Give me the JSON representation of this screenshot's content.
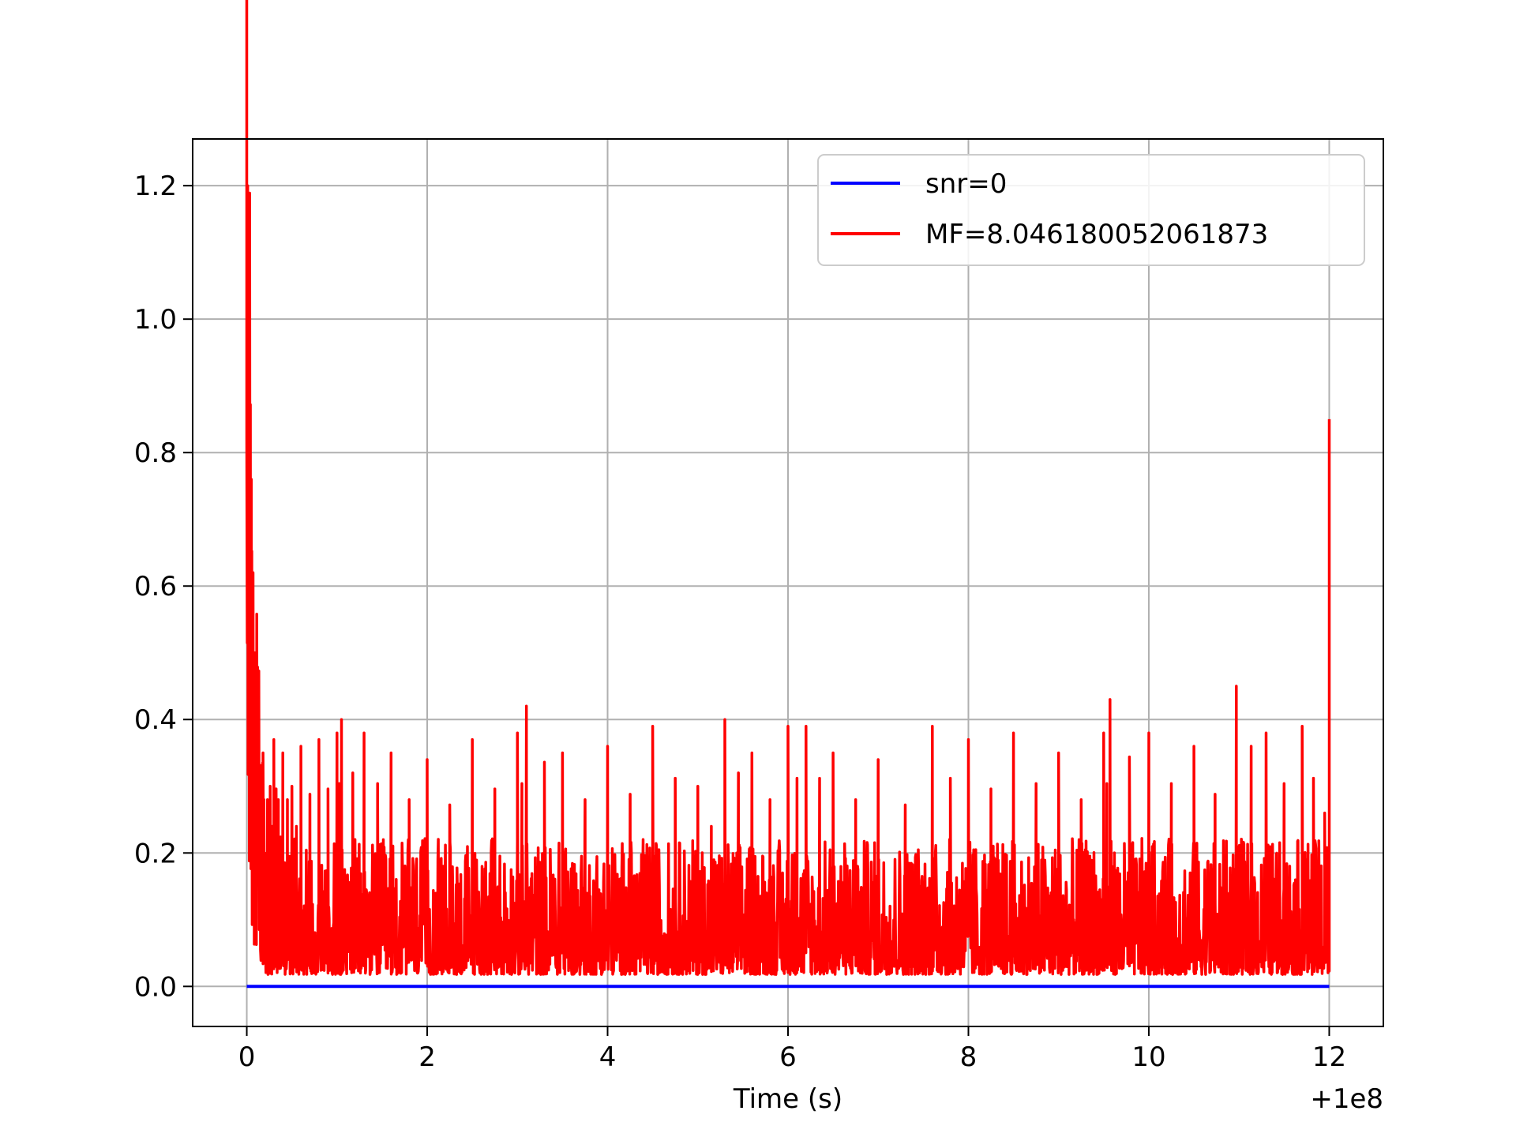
{
  "chart_data": {
    "type": "line",
    "title": "",
    "xlabel": "Time (s)",
    "ylabel": "",
    "x_offset_label": "+1e8",
    "xlim": [
      -0.6,
      12.6
    ],
    "ylim": [
      -0.06,
      1.27
    ],
    "x_ticks": [
      0,
      2,
      4,
      6,
      8,
      10,
      12
    ],
    "x_tick_labels": [
      "0",
      "2",
      "4",
      "6",
      "8",
      "10",
      "12"
    ],
    "y_ticks": [
      0.0,
      0.2,
      0.4,
      0.6,
      0.8,
      1.0,
      1.2
    ],
    "y_tick_labels": [
      "0.0",
      "0.2",
      "0.4",
      "0.6",
      "0.8",
      "1.0",
      "1.2"
    ],
    "grid": true,
    "legend_position": "top-right",
    "series": [
      {
        "name": "snr=0",
        "color": "#0000ff",
        "x": [
          0,
          12
        ],
        "y": [
          0,
          0
        ]
      },
      {
        "name": "MF=8.046180052061873",
        "color": "#ff0000",
        "description_points": {
          "x": [
            0.0,
            0.01,
            0.02,
            0.03,
            0.05,
            0.07,
            0.09,
            0.11,
            0.13,
            0.15,
            0.18,
            0.2,
            0.23,
            0.26,
            0.3,
            0.35,
            0.4,
            0.5,
            0.6,
            0.8,
            1.0,
            1.05,
            1.3,
            1.6,
            2.0,
            2.5,
            3.0,
            3.1,
            3.5,
            4.0,
            4.5,
            5.0,
            5.3,
            5.6,
            6.0,
            6.2,
            6.5,
            7.0,
            7.6,
            8.0,
            8.5,
            9.0,
            9.5,
            9.57,
            10.0,
            10.5,
            10.97,
            11.3,
            11.7,
            11.95,
            12.0
          ],
          "y": [
            0.82,
            1.2,
            0.9,
            1.09,
            0.76,
            0.62,
            0.5,
            0.45,
            0.41,
            0.3,
            0.35,
            0.2,
            0.28,
            0.3,
            0.37,
            0.28,
            0.35,
            0.3,
            0.36,
            0.37,
            0.38,
            0.4,
            0.38,
            0.35,
            0.34,
            0.37,
            0.38,
            0.42,
            0.35,
            0.36,
            0.39,
            0.3,
            0.4,
            0.35,
            0.39,
            0.39,
            0.35,
            0.34,
            0.39,
            0.37,
            0.38,
            0.35,
            0.38,
            0.43,
            0.38,
            0.36,
            0.45,
            0.38,
            0.39,
            0.26,
            0.85
          ]
        },
        "noise_band": {
          "low": 0.0,
          "typical_high": 0.3,
          "mean": 0.12
        }
      }
    ]
  }
}
